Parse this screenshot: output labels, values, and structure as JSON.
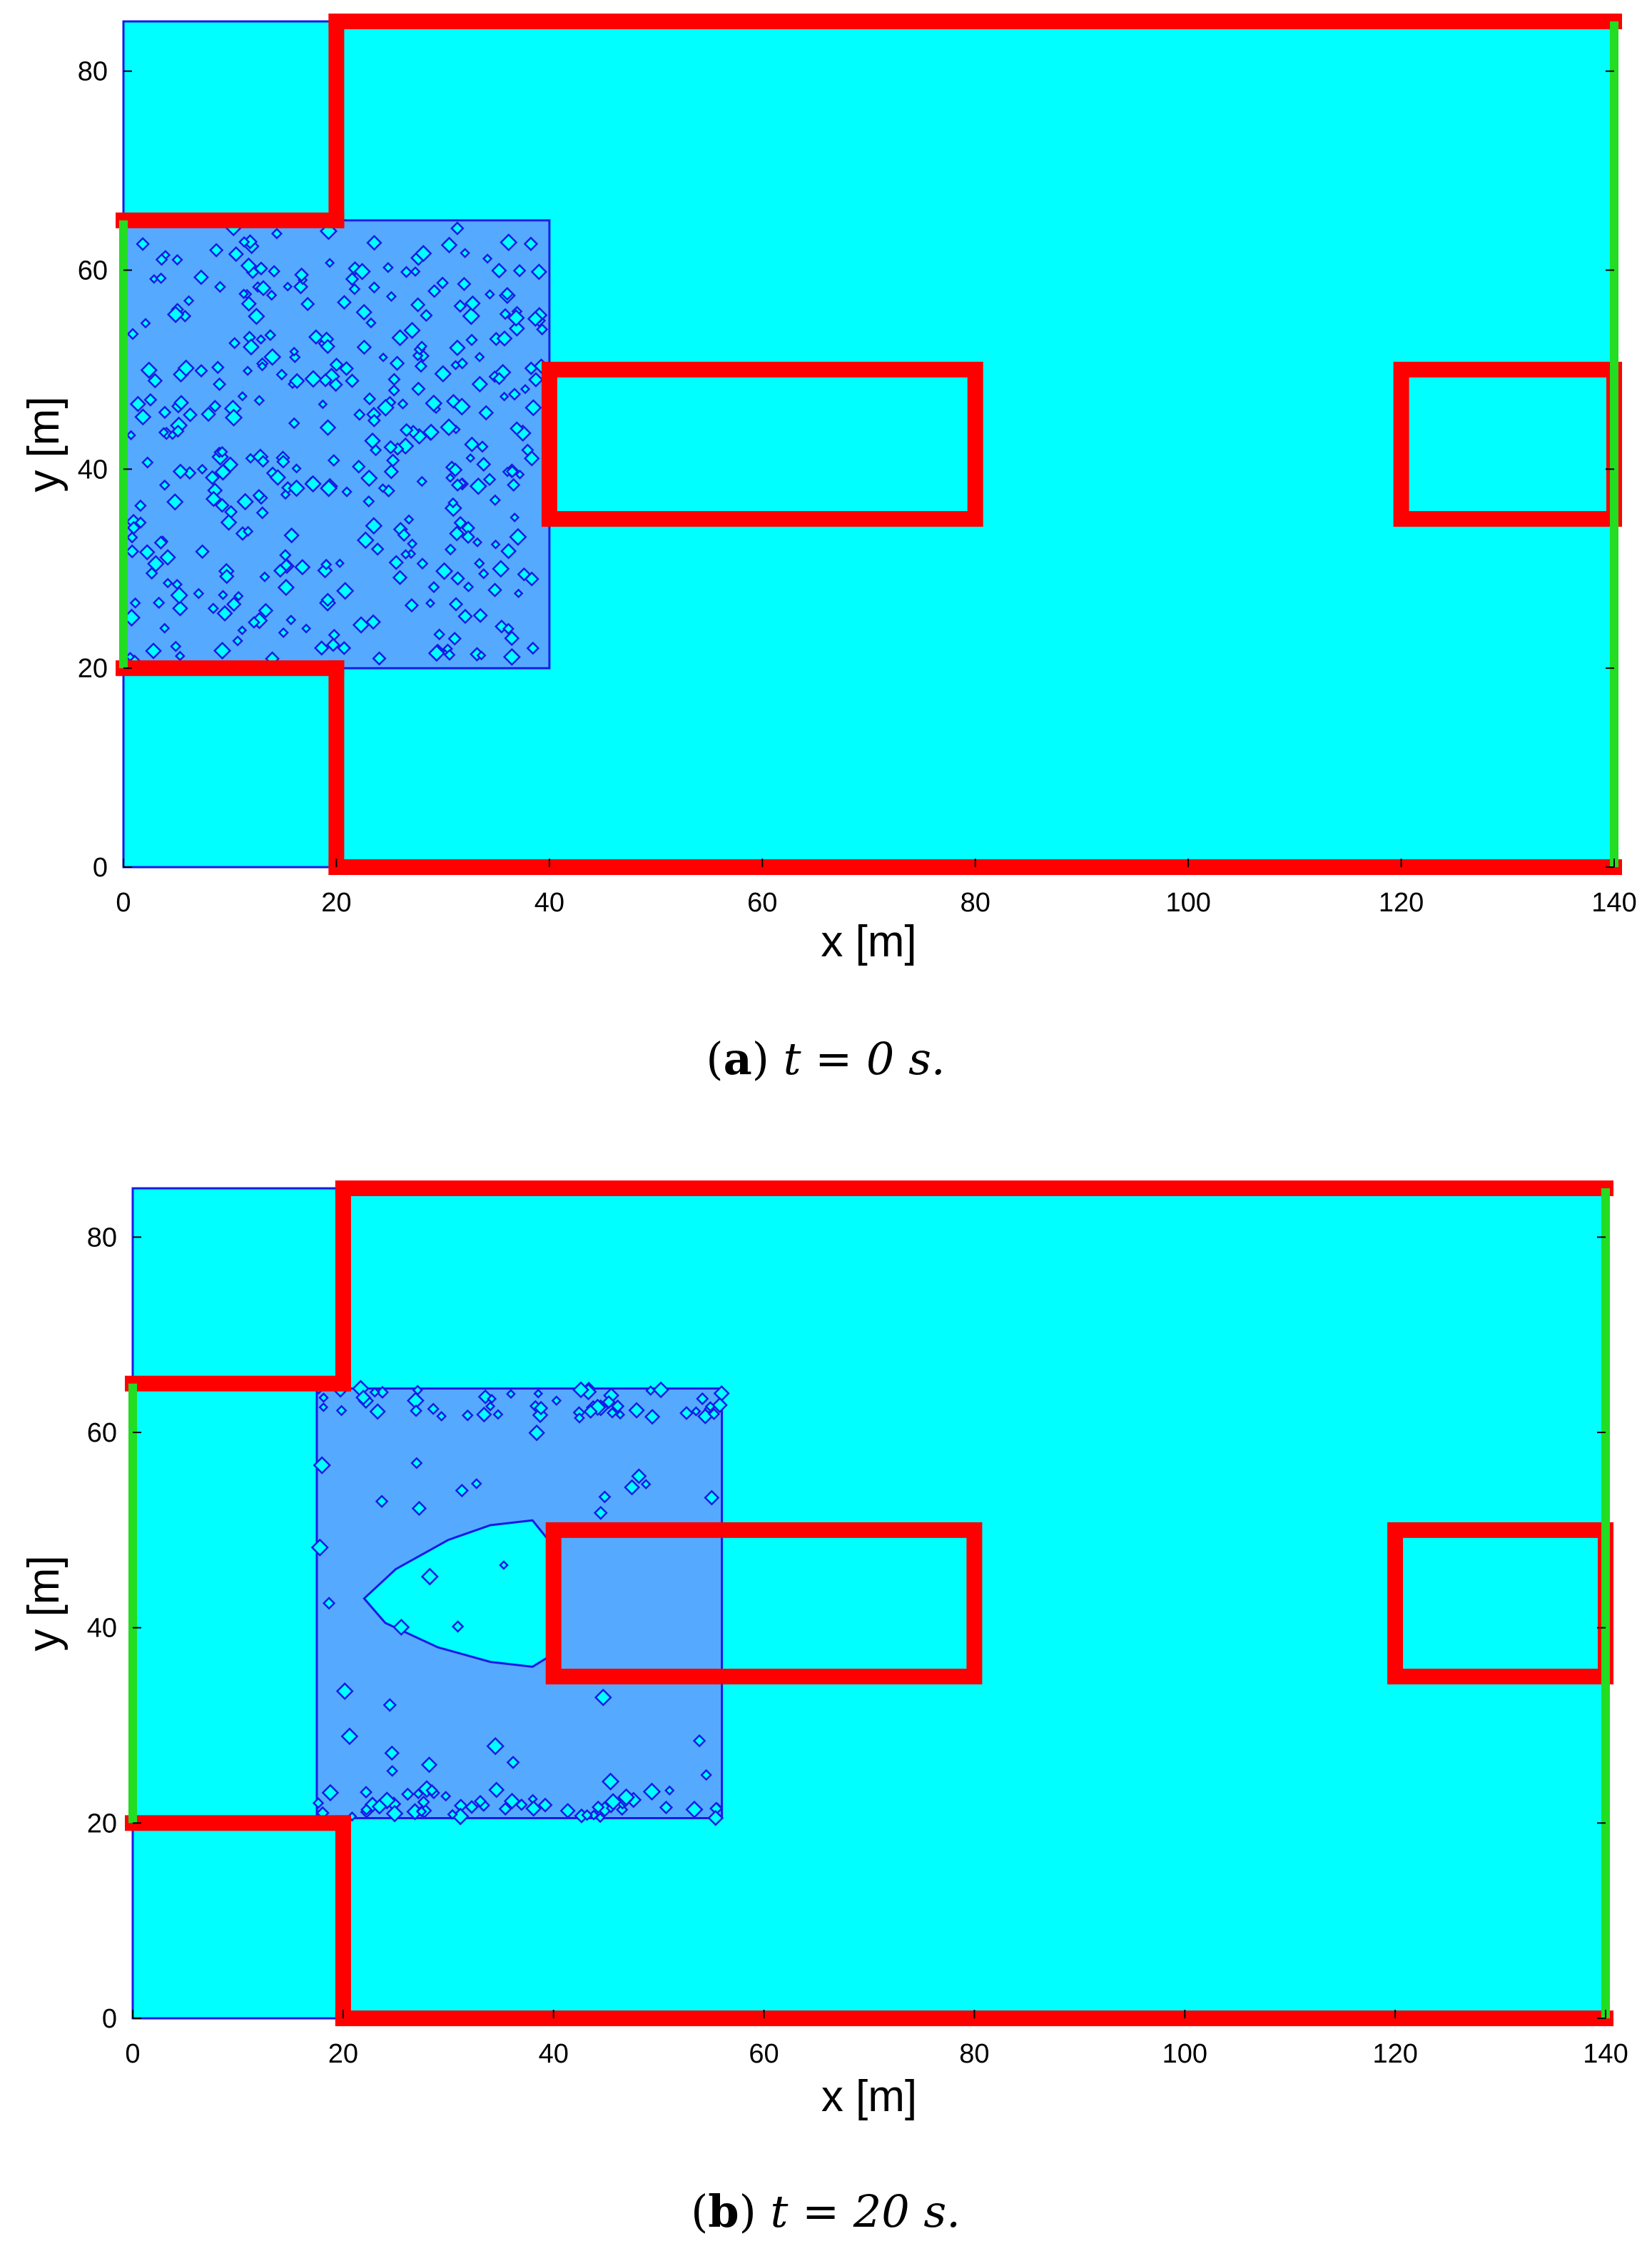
{
  "chart_data": [
    {
      "type": "heatmap",
      "caption_label": "a",
      "caption_text": "t = 0 s.",
      "xlabel": "x [m]",
      "ylabel": "y [m]",
      "xlim": [
        0,
        140
      ],
      "ylim": [
        0,
        85
      ],
      "xticks": [
        0,
        20,
        40,
        60,
        80,
        100,
        120,
        140
      ],
      "yticks": [
        0,
        20,
        40,
        60,
        80
      ],
      "grid": false,
      "colors": {
        "background": "#00FFFF",
        "crowd": "#55AAFF",
        "contour": "#1A1AE6",
        "walls": "#FF0000",
        "exits": "#22DD22"
      },
      "walls": [
        [
          [
            20,
            85
          ],
          [
            140,
            85
          ]
        ],
        [
          [
            20,
            85
          ],
          [
            20,
            65
          ]
        ],
        [
          [
            0,
            65
          ],
          [
            20,
            65
          ]
        ],
        [
          [
            0,
            20
          ],
          [
            20,
            20
          ]
        ],
        [
          [
            20,
            20
          ],
          [
            20,
            0
          ]
        ],
        [
          [
            20,
            0
          ],
          [
            140,
            0
          ]
        ],
        [
          [
            40,
            35
          ],
          [
            80,
            35
          ],
          [
            80,
            50
          ],
          [
            40,
            50
          ],
          [
            40,
            35
          ]
        ],
        [
          [
            140,
            35
          ],
          [
            120,
            35
          ],
          [
            120,
            50
          ],
          [
            140,
            50
          ],
          [
            140,
            35
          ]
        ]
      ],
      "exits": [
        [
          [
            0,
            20
          ],
          [
            0,
            65
          ]
        ],
        [
          [
            140,
            0
          ],
          [
            140,
            85
          ]
        ]
      ],
      "crowd_polygon": [
        [
          0,
          20
        ],
        [
          40,
          20
        ],
        [
          40,
          65
        ],
        [
          0,
          65
        ]
      ]
    },
    {
      "type": "heatmap",
      "caption_label": "b",
      "caption_text": "t = 20 s.",
      "xlabel": "x [m]",
      "ylabel": "y [m]",
      "xlim": [
        0,
        140
      ],
      "ylim": [
        0,
        85
      ],
      "xticks": [
        0,
        20,
        40,
        60,
        80,
        100,
        120,
        140
      ],
      "yticks": [
        0,
        20,
        40,
        60,
        80
      ],
      "grid": false,
      "colors": {
        "background": "#00FFFF",
        "crowd": "#55AAFF",
        "contour": "#1A1AE6",
        "walls": "#FF0000",
        "exits": "#22DD22"
      },
      "walls": [
        [
          [
            20,
            85
          ],
          [
            140,
            85
          ]
        ],
        [
          [
            20,
            85
          ],
          [
            20,
            65
          ]
        ],
        [
          [
            0,
            65
          ],
          [
            20,
            65
          ]
        ],
        [
          [
            0,
            20
          ],
          [
            20,
            20
          ]
        ],
        [
          [
            20,
            20
          ],
          [
            20,
            0
          ]
        ],
        [
          [
            20,
            0
          ],
          [
            140,
            0
          ]
        ],
        [
          [
            40,
            35
          ],
          [
            80,
            35
          ],
          [
            80,
            50
          ],
          [
            40,
            50
          ],
          [
            40,
            35
          ]
        ],
        [
          [
            140,
            35
          ],
          [
            120,
            35
          ],
          [
            120,
            50
          ],
          [
            140,
            50
          ],
          [
            140,
            35
          ]
        ]
      ],
      "exits": [
        [
          [
            0,
            20
          ],
          [
            0,
            65
          ]
        ],
        [
          [
            140,
            0
          ],
          [
            140,
            85
          ]
        ]
      ],
      "crowd_polygon": [
        [
          17.5,
          20.5
        ],
        [
          56,
          20.5
        ],
        [
          56,
          64.5
        ],
        [
          17.5,
          64.5
        ]
      ],
      "hole_polygon": [
        [
          38,
          36
        ],
        [
          34,
          36.5
        ],
        [
          29,
          38
        ],
        [
          24,
          40.5
        ],
        [
          22,
          43
        ],
        [
          25,
          46
        ],
        [
          30,
          49
        ],
        [
          34,
          50.5
        ],
        [
          38,
          51
        ],
        [
          39.5,
          49
        ],
        [
          39.5,
          37
        ]
      ]
    }
  ]
}
